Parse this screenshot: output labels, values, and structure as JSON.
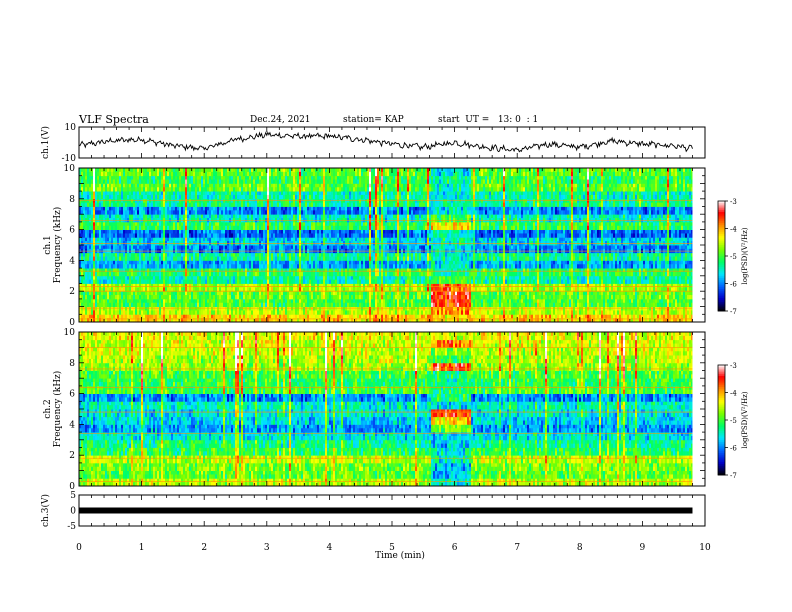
{
  "header": {
    "title": "VLF Spectra",
    "date": "Dec.24, 2021",
    "station": "station= KAP",
    "start": "start  UT =   13: 0  : 1"
  },
  "colors": {
    "colormap": [
      "#000000",
      "#0000c8",
      "#0064ff",
      "#00e6ff",
      "#00ff64",
      "#78ff00",
      "#ffff00",
      "#ff8c00",
      "#ff0000",
      "#ffffff"
    ],
    "trace": "#000000"
  },
  "chart_data": [
    {
      "type": "line",
      "panel": "ch1-waveform",
      "ylabel": "ch.1(V)",
      "ylim": [
        -10,
        10
      ],
      "yticks": [
        10,
        -10
      ],
      "xlim": [
        0,
        10
      ],
      "x": [
        0,
        0.5,
        1.0,
        1.5,
        2.0,
        2.5,
        3.0,
        3.5,
        4.0,
        4.5,
        5.0,
        5.5,
        6.0,
        6.5,
        7.0,
        7.5,
        8.0,
        8.5,
        9.0,
        9.5,
        9.8
      ],
      "y": [
        -2,
        1,
        2,
        -2,
        -4,
        2,
        5,
        4,
        4,
        2,
        -1,
        -3,
        0,
        -3,
        -5,
        -1,
        -3,
        1,
        -1,
        -2,
        -4
      ]
    },
    {
      "type": "heatmap",
      "panel": "ch1-spectrogram",
      "ylabel": "ch.1\nFrequency (kHz)",
      "ylim": [
        0,
        10
      ],
      "yticks": [
        "0",
        "2",
        "4",
        "6",
        "8",
        "10"
      ],
      "xlim": [
        0,
        10
      ],
      "data_end_min": 9.8,
      "colorbar": {
        "label": "log(PSD)(V²/Hz)",
        "range": [
          -7,
          -3
        ],
        "ticks": [
          "-3",
          "-4",
          "-5",
          "-6",
          "-7"
        ]
      },
      "frequency_khz": [
        0.25,
        0.75,
        1.25,
        1.75,
        2.25,
        2.75,
        3.25,
        3.75,
        4.25,
        4.75,
        5.25,
        5.75,
        6.25,
        6.75,
        7.25,
        7.75,
        8.25,
        8.75,
        9.25,
        9.75
      ],
      "background_log_psd": [
        -4.2,
        -4.6,
        -5.0,
        -4.9,
        -4.6,
        -5.4,
        -5.1,
        -5.9,
        -5.3,
        -6.0,
        -5.7,
        -6.1,
        -5.1,
        -5.5,
        -6.0,
        -5.3,
        -5.4,
        -4.9,
        -5.1,
        -4.9
      ],
      "interference_interval_min": [
        5.6,
        6.25
      ],
      "interference_log_psd": [
        -4.2,
        -4.0,
        -3.6,
        -3.5,
        -3.7,
        -5.0,
        -5.3,
        -5.6,
        -5.5,
        -5.6,
        -5.4,
        -5.5,
        -4.3,
        -5.0,
        -5.6,
        -5.5,
        -5.6,
        -5.5,
        -5.4,
        -5.6
      ]
    },
    {
      "type": "heatmap",
      "panel": "ch2-spectrogram",
      "ylabel": "ch.2\nFrequency (kHz)",
      "ylim": [
        0,
        10
      ],
      "yticks": [
        "0",
        "2",
        "4",
        "6",
        "8",
        "10"
      ],
      "xlim": [
        0,
        10
      ],
      "data_end_min": 9.8,
      "colorbar": {
        "label": "log(PSD)(V²/Hz)",
        "range": [
          -7,
          -3
        ],
        "ticks": [
          "-3",
          "-4",
          "-5",
          "-6",
          "-7"
        ]
      },
      "frequency_khz": [
        0.25,
        0.75,
        1.25,
        1.75,
        2.25,
        2.75,
        3.25,
        3.75,
        4.25,
        4.75,
        5.25,
        5.75,
        6.25,
        6.75,
        7.25,
        7.75,
        8.25,
        8.75,
        9.25,
        9.75
      ],
      "background_log_psd": [
        -4.6,
        -4.9,
        -4.8,
        -4.6,
        -5.1,
        -5.3,
        -5.6,
        -5.9,
        -5.7,
        -5.6,
        -5.5,
        -6.0,
        -5.0,
        -5.1,
        -5.0,
        -4.7,
        -4.6,
        -4.5,
        -4.5,
        -4.4
      ],
      "interference_interval_min": [
        5.6,
        6.25
      ],
      "interference_log_psd": [
        -5.6,
        -5.8,
        -5.8,
        -5.5,
        -5.5,
        -5.8,
        -5.7,
        -4.8,
        -4.2,
        -3.7,
        -5.6,
        -5.2,
        -5.3,
        -5.3,
        -5.2,
        -3.6,
        -5.1,
        -4.8,
        -3.8,
        -4.5
      ]
    },
    {
      "type": "line",
      "panel": "ch3-waveform",
      "ylabel": "ch.3(V)",
      "ylim": [
        -5,
        5
      ],
      "yticks": [
        "5",
        "0",
        "-5"
      ],
      "xlim": [
        0,
        10
      ],
      "x": [
        0,
        9.8
      ],
      "y": [
        0,
        0
      ],
      "xlabel": "Time  (min)",
      "xticks": [
        "0",
        "1",
        "2",
        "3",
        "4",
        "5",
        "6",
        "7",
        "8",
        "9",
        "10"
      ]
    }
  ]
}
